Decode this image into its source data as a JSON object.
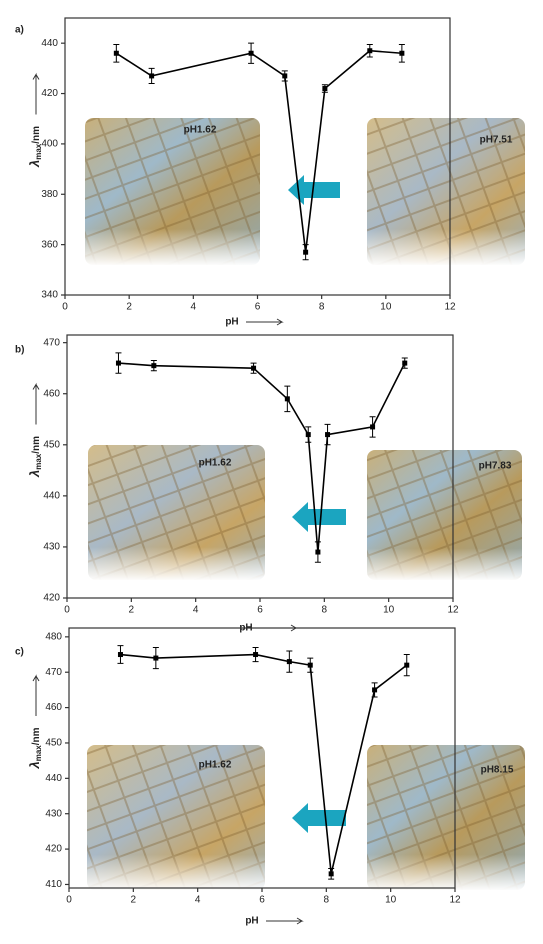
{
  "chart_data": [
    {
      "type": "line",
      "panel_label": "a)",
      "x_label": "pH",
      "y_label": [
        "λ",
        "max",
        "/nm"
      ],
      "x": [
        1.6,
        2.7,
        5.8,
        6.85,
        7.5,
        8.1,
        9.5,
        10.5
      ],
      "series": [
        {
          "color": "#000000",
          "values": [
            436,
            427,
            436,
            427,
            357,
            422,
            437,
            436
          ],
          "errors": [
            3.5,
            3,
            4,
            2,
            3,
            1.5,
            2.5,
            3.5
          ]
        }
      ],
      "xlim": [
        0,
        12
      ],
      "xticks": [
        0,
        2,
        4,
        6,
        8,
        10,
        12
      ],
      "ylim": [
        340,
        450
      ],
      "yticks": [
        340,
        360,
        380,
        400,
        420,
        440
      ],
      "insets": [
        {
          "label": "pH1.62",
          "color": "#111111"
        },
        {
          "label": "pH7.51",
          "color": "#e8201c"
        }
      ]
    },
    {
      "type": "line",
      "panel_label": "b)",
      "x_label": "pH",
      "y_label": [
        "λ",
        "max",
        "/nm"
      ],
      "x": [
        1.6,
        2.7,
        5.8,
        6.85,
        7.5,
        7.8,
        8.1,
        9.5,
        10.5
      ],
      "series": [
        {
          "color": "#000000",
          "values": [
            466,
            465.5,
            465,
            459,
            452,
            429,
            452,
            453.5,
            466
          ],
          "errors": [
            2,
            1,
            1,
            2.5,
            1.5,
            2,
            2,
            2,
            1
          ]
        }
      ],
      "xlim": [
        0,
        12
      ],
      "xticks": [
        0,
        2,
        4,
        6,
        8,
        10,
        12
      ],
      "ylim": [
        420,
        471.5
      ],
      "yticks": [
        420,
        430,
        440,
        450,
        460,
        470
      ],
      "insets": [
        {
          "label": "pH1.62",
          "color": "#111111"
        },
        {
          "label": "pH7.83",
          "color": "#e8201c"
        }
      ]
    },
    {
      "type": "line",
      "panel_label": "c)",
      "x_label": "pH",
      "y_label": [
        "λ",
        "max",
        "/nm"
      ],
      "x": [
        1.6,
        2.7,
        5.8,
        6.85,
        7.5,
        8.15,
        9.5,
        10.5
      ],
      "series": [
        {
          "color": "#000000",
          "values": [
            475,
            474,
            475,
            473,
            472,
            413,
            465,
            472
          ],
          "errors": [
            2.5,
            3,
            2,
            3,
            2,
            1.5,
            2,
            3
          ]
        }
      ],
      "xlim": [
        0,
        12
      ],
      "xticks": [
        0,
        2,
        4,
        6,
        8,
        10,
        12
      ],
      "ylim": [
        409,
        482.5
      ],
      "yticks": [
        410,
        420,
        430,
        440,
        450,
        460,
        470,
        480
      ],
      "insets": [
        {
          "label": "pH1.62",
          "color": "#111111"
        },
        {
          "label": "pH8.15",
          "color": "#e8201c"
        }
      ]
    }
  ]
}
